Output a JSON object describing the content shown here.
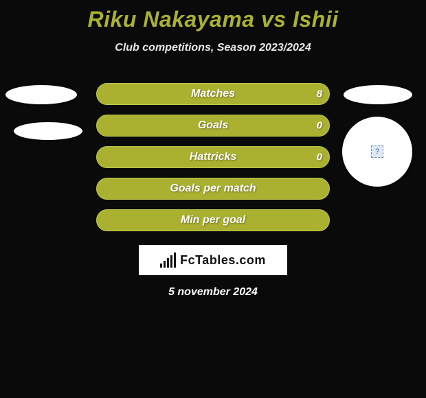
{
  "title": "Riku Nakayama vs Ishii",
  "subtitle": "Club competitions, Season 2023/2024",
  "stats": [
    {
      "label": "Matches",
      "value": "8"
    },
    {
      "label": "Goals",
      "value": "0"
    },
    {
      "label": "Hattricks",
      "value": "0"
    },
    {
      "label": "Goals per match",
      "value": ""
    },
    {
      "label": "Min per goal",
      "value": ""
    }
  ],
  "logo_text": "FcTables.com",
  "date": "5 november 2024",
  "colors": {
    "accent": "#aab030",
    "background": "#0a0a0a",
    "text": "#ffffff"
  }
}
